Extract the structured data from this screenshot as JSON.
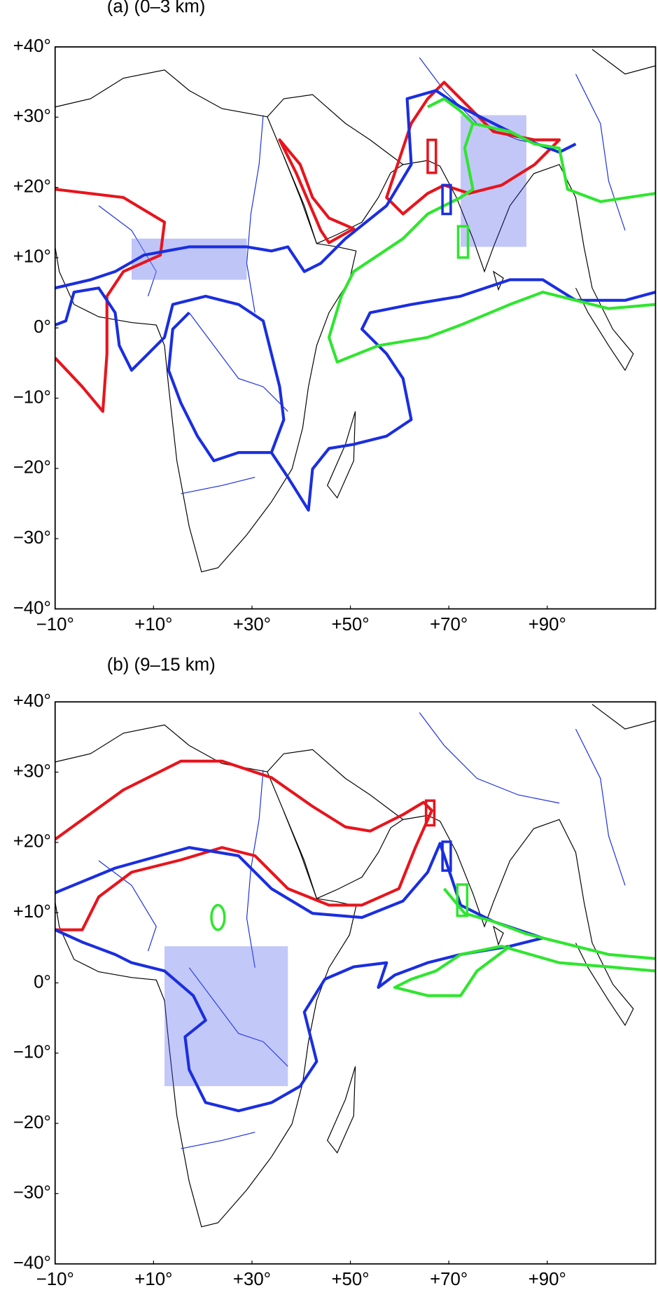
{
  "panels": [
    {
      "title": "(a) (0–3 km)",
      "xlim": [
        -10,
        112
      ],
      "ylim": [
        -40,
        40
      ],
      "xticks": [
        {
          "value": -10,
          "label": "−10°"
        },
        {
          "value": 10,
          "label": "+10°"
        },
        {
          "value": 30,
          "label": "+30°"
        },
        {
          "value": 50,
          "label": "+50°"
        },
        {
          "value": 70,
          "label": "+70°"
        },
        {
          "value": 90,
          "label": "+90°"
        }
      ],
      "yticks": [
        {
          "value": 40,
          "label": "+40°"
        },
        {
          "value": 30,
          "label": "+30°"
        },
        {
          "value": 20,
          "label": "+20°"
        },
        {
          "value": 10,
          "label": "+10°"
        },
        {
          "value": 0,
          "label": "0°"
        },
        {
          "value": -10,
          "label": "−10°"
        },
        {
          "value": -20,
          "label": "−20°"
        },
        {
          "value": -30,
          "label": "−30°"
        },
        {
          "value": -40,
          "label": "−40°"
        }
      ]
    },
    {
      "title": "(b) (9–15 km)",
      "xlim": [
        -10,
        112
      ],
      "ylim": [
        -40,
        40
      ],
      "xticks": [
        {
          "value": -10,
          "label": "−10°"
        },
        {
          "value": 10,
          "label": "+10°"
        },
        {
          "value": 30,
          "label": "+30°"
        },
        {
          "value": 50,
          "label": "+50°"
        },
        {
          "value": 70,
          "label": "+70°"
        },
        {
          "value": 90,
          "label": "+90°"
        }
      ],
      "yticks": [
        {
          "value": 40,
          "label": "+40°"
        },
        {
          "value": 30,
          "label": "+30°"
        },
        {
          "value": 20,
          "label": "+20°"
        },
        {
          "value": 10,
          "label": "+10°"
        },
        {
          "value": 0,
          "label": "0°"
        },
        {
          "value": -10,
          "label": "−10°"
        },
        {
          "value": -20,
          "label": "−20°"
        },
        {
          "value": -30,
          "label": "−30°"
        },
        {
          "value": -40,
          "label": "−40°"
        }
      ]
    }
  ]
}
